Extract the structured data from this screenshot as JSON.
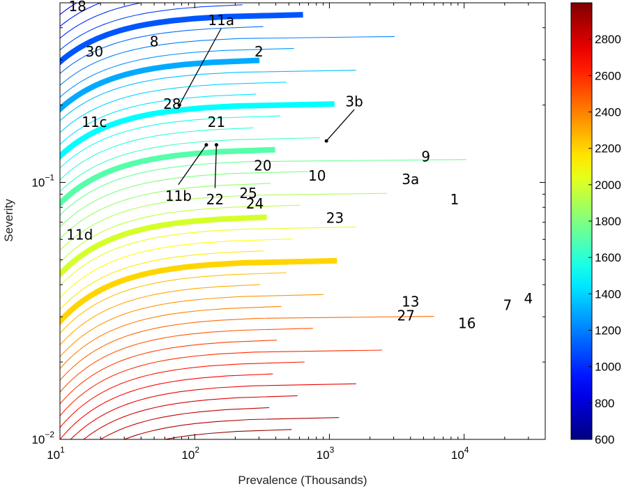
{
  "chart_data": {
    "type": "contour",
    "title": "",
    "xlabel": "Prevalence (Thousands)",
    "ylabel": "Severity",
    "x_scale": "log",
    "y_scale": "log",
    "xlim": [
      10,
      40000
    ],
    "ylim": [
      0.01,
      0.5
    ],
    "grid": false,
    "x_ticks": [
      {
        "base": "10",
        "exp": "1"
      },
      {
        "base": "10",
        "exp": "2"
      },
      {
        "base": "10",
        "exp": "3"
      },
      {
        "base": "10",
        "exp": "4"
      }
    ],
    "y_ticks": [
      {
        "base": "10",
        "exp": "−2"
      },
      {
        "base": "10",
        "exp": "−1"
      }
    ],
    "colorbar": {
      "range": [
        600,
        3000
      ],
      "ticks": [
        "600",
        "800",
        "1000",
        "1200",
        "1400",
        "1600",
        "1800",
        "2000",
        "2200",
        "2400",
        "2600",
        "2800"
      ],
      "colormap": "jet"
    },
    "contour_levels": {
      "start": 600,
      "end": 3000,
      "step": 50
    },
    "thick_levels": [
      1100,
      1300,
      1500,
      1700,
      2000,
      2200
    ],
    "points": [
      {
        "label": "18",
        "x": 13.5,
        "y": 0.48
      },
      {
        "label": "11a",
        "x": 77,
        "y": 0.2,
        "leader": true
      },
      {
        "label": "8",
        "x": 50,
        "y": 0.35
      },
      {
        "label": "30",
        "x": 18,
        "y": 0.32
      },
      {
        "label": "2",
        "x": 300,
        "y": 0.32
      },
      {
        "label": "28",
        "x": 68,
        "y": 0.2
      },
      {
        "label": "11c",
        "x": 18,
        "y": 0.17
      },
      {
        "label": "21",
        "x": 145,
        "y": 0.17
      },
      {
        "label": "3b",
        "x": 950,
        "y": 0.145,
        "leader": true
      },
      {
        "label": "11b",
        "x": 122,
        "y": 0.14,
        "leader": true
      },
      {
        "label": "22",
        "x": 145,
        "y": 0.14,
        "leader": true
      },
      {
        "label": "20",
        "x": 320,
        "y": 0.115
      },
      {
        "label": "10",
        "x": 810,
        "y": 0.105
      },
      {
        "label": "9",
        "x": 5200,
        "y": 0.125
      },
      {
        "label": "3a",
        "x": 4000,
        "y": 0.102
      },
      {
        "label": "25",
        "x": 250,
        "y": 0.09
      },
      {
        "label": "24",
        "x": 280,
        "y": 0.082
      },
      {
        "label": "1",
        "x": 8500,
        "y": 0.085
      },
      {
        "label": "23",
        "x": 1100,
        "y": 0.072
      },
      {
        "label": "11d",
        "x": 14,
        "y": 0.062
      },
      {
        "label": "13",
        "x": 4000,
        "y": 0.034
      },
      {
        "label": "27",
        "x": 3700,
        "y": 0.03
      },
      {
        "label": "16",
        "x": 10500,
        "y": 0.028
      },
      {
        "label": "7",
        "x": 21000,
        "y": 0.033
      },
      {
        "label": "4",
        "x": 30000,
        "y": 0.035
      }
    ]
  }
}
